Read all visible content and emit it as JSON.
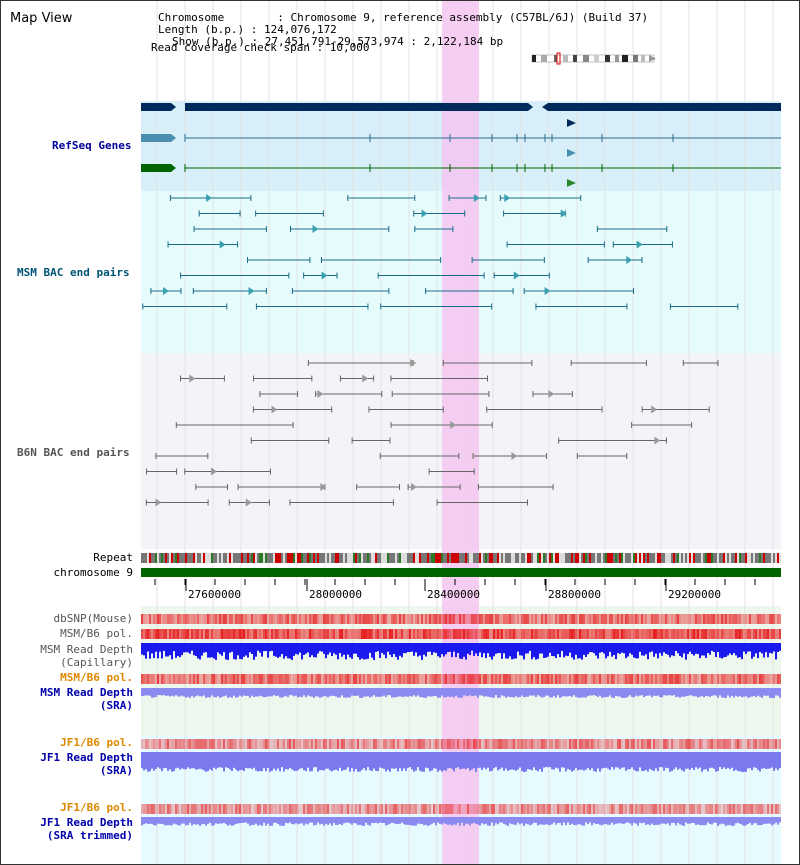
{
  "view_title": "Map View",
  "info": {
    "chromosome": "Chromosome        : Chromosome 9, reference assembly (C57BL/6J) (Build 37)",
    "length": "Length (b.p.) : 124,076,172",
    "show": "Show (b.p.) : 27,451,791-29,573,974 : 2,122,184 bp",
    "span": "Read coverage check span : 10,000"
  },
  "tracks": {
    "refseq": "RefSeq Genes",
    "msm_bac": "MSM BAC end pairs",
    "b6n_bac": "B6N BAC end pairs",
    "repeat": "Repeat",
    "chromosome": "chromosome 9",
    "dbsnp": "dbSNP(Mouse)",
    "msm_b6_pol_1": "MSM/B6 pol.",
    "msm_depth_cap_1": "MSM Read Depth",
    "msm_depth_cap_2": "(Capillary)",
    "msm_b6_pol_2": "MSM/B6 pol.",
    "msm_depth_sra_1": "MSM Read Depth",
    "msm_depth_sra_2": "(SRA)",
    "jf1_b6_pol_1": "JF1/B6 pol.",
    "jf1_depth_sra_1": "JF1 Read Depth",
    "jf1_depth_sra_2": "(SRA)",
    "jf1_b6_pol_2": "JF1/B6 pol.",
    "jf1_depth_trim_1": "JF1 Read Depth",
    "jf1_depth_trim_2": "(SRA trimmed)"
  },
  "axis_ticks": [
    "27600000",
    "28000000",
    "28400000",
    "28800000",
    "29200000"
  ],
  "colors": {
    "refseq_label": "#000099",
    "msm_bac_label": "#005577",
    "b6n_bac_label": "#555555",
    "orange_label": "#dd8800",
    "blue_label": "#0000aa",
    "highlight": "#f5c6f0",
    "gene_navy": "#002a5c",
    "chrom_green": "#006400"
  }
}
